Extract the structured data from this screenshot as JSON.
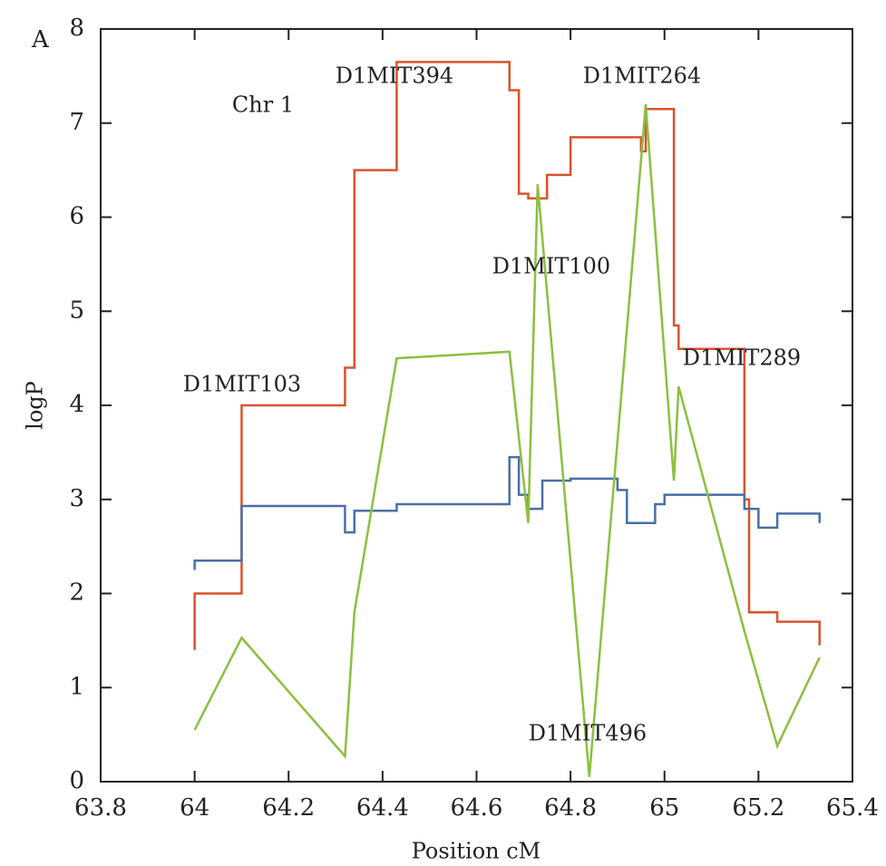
{
  "chart_data": {
    "type": "line",
    "panel_label": "A",
    "xlabel": "Position cM",
    "ylabel": "logP",
    "annotations": [
      "Chr 1",
      "D1MIT394",
      "D1MIT264",
      "D1MIT100",
      "D1MIT103",
      "D1MIT289",
      "D1MIT496"
    ],
    "xlim": [
      63.8,
      65.4
    ],
    "xticks": [
      63.8,
      64,
      64.2,
      64.4,
      64.6,
      64.8,
      65,
      65.2,
      65.4
    ],
    "ylim": [
      0,
      8
    ],
    "yticks": [
      0,
      1,
      2,
      3,
      4,
      5,
      6,
      7,
      8
    ],
    "series": [
      {
        "color": "#d9532c",
        "step": true,
        "x": [
          64.0,
          64.0,
          64.1,
          64.32,
          64.34,
          64.43,
          64.67,
          64.69,
          64.71,
          64.75,
          64.8,
          64.95,
          64.96,
          65.02,
          65.03,
          65.17,
          65.18,
          65.24,
          65.33,
          65.33
        ],
        "values": [
          1.4,
          2.0,
          4.0,
          4.4,
          6.5,
          7.65,
          7.35,
          6.25,
          6.2,
          6.45,
          6.85,
          6.7,
          7.15,
          4.85,
          4.6,
          3.0,
          1.8,
          1.7,
          1.7,
          1.45
        ]
      },
      {
        "color": "#4a6fa5",
        "step": true,
        "x": [
          64.0,
          64.0,
          64.1,
          64.32,
          64.34,
          64.43,
          64.67,
          64.69,
          64.71,
          64.74,
          64.8,
          64.9,
          64.92,
          64.98,
          65.0,
          65.17,
          65.2,
          65.24,
          65.33,
          65.33
        ],
        "values": [
          2.25,
          2.35,
          2.93,
          2.65,
          2.88,
          2.95,
          3.45,
          3.05,
          2.9,
          3.2,
          3.22,
          3.1,
          2.75,
          2.95,
          3.05,
          2.9,
          2.7,
          2.85,
          2.85,
          2.75
        ]
      },
      {
        "color": "#8cbf3f",
        "step": false,
        "x": [
          64.0,
          64.1,
          64.32,
          64.34,
          64.43,
          64.67,
          64.71,
          64.73,
          64.84,
          64.96,
          65.02,
          65.03,
          65.17,
          65.24,
          65.33
        ],
        "values": [
          0.55,
          1.53,
          0.27,
          1.8,
          4.5,
          4.57,
          2.75,
          6.35,
          0.05,
          7.2,
          3.2,
          4.2,
          1.6,
          0.38,
          1.32
        ]
      }
    ]
  }
}
